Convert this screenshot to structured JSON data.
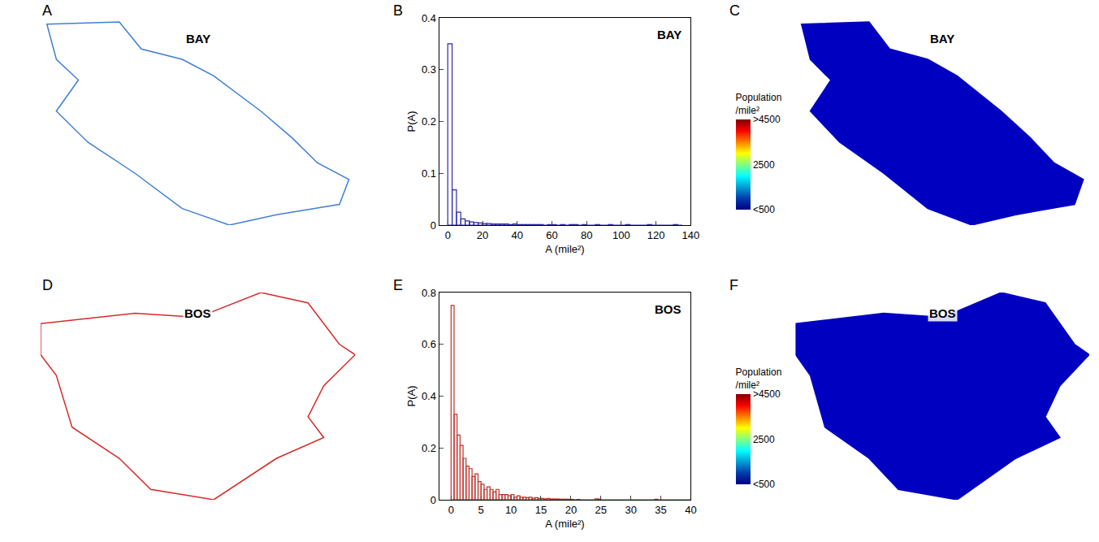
{
  "chart_data": [
    {
      "type": "map",
      "panel": "A",
      "title": "BAY",
      "color": "#3f7fd6"
    },
    {
      "type": "histogram",
      "panel": "B",
      "title": "BAY",
      "color": "#2a2ab0",
      "x_label": "A (mile²)",
      "y_label": "P(A)",
      "bins": [
        0,
        2.5,
        5,
        7.5,
        10,
        12.5,
        15,
        17.5,
        20,
        22.5,
        25,
        27.5,
        30,
        32.5,
        35,
        37.5,
        40,
        42.5,
        45,
        47.5,
        50,
        52.5,
        55,
        57.5,
        60,
        62.5,
        65,
        67.5,
        70,
        72.5,
        75,
        77.5,
        80,
        82.5,
        85,
        87.5,
        90,
        92.5,
        95,
        97.5,
        100,
        102.5,
        105,
        107.5,
        110,
        112.5,
        115,
        117.5,
        120,
        122.5,
        125,
        127.5,
        130,
        132.5,
        135
      ],
      "values": [
        0.35,
        0.068,
        0.025,
        0.012,
        0.008,
        0.006,
        0.005,
        0.004,
        0.003,
        0.003,
        0.002,
        0.002,
        0.002,
        0.002,
        0.001,
        0.002,
        0.001,
        0.001,
        0.001,
        0.001,
        0.001,
        0.001,
        0,
        0.001,
        0.001,
        0,
        0.001,
        0,
        0.001,
        0.001,
        0,
        0.001,
        0,
        0,
        0.001,
        0,
        0,
        0.001,
        0,
        0,
        0,
        0.001,
        0,
        0,
        0,
        0,
        0.001,
        0,
        0,
        0,
        0,
        0,
        0.001,
        0
      ],
      "xlim": [
        -5,
        140
      ],
      "xticks": [
        0,
        20,
        40,
        60,
        80,
        100,
        120,
        140
      ],
      "ylim": [
        0,
        0.4
      ],
      "yticks": [
        0,
        0.1,
        0.2,
        0.3,
        0.4
      ]
    },
    {
      "type": "map",
      "panel": "C",
      "title": "BAY",
      "colorbar_title": "Population /mile²",
      "colorbar_range": [
        500,
        4500
      ],
      "colorbar_ticks": [
        {
          "value": 500,
          "label": "<500"
        },
        2500,
        {
          "value": 4500,
          "label": ">4500"
        }
      ]
    },
    {
      "type": "map",
      "panel": "D",
      "title": "BOS",
      "color": "#d62a2a"
    },
    {
      "type": "histogram",
      "panel": "E",
      "title": "BOS",
      "color": "#c0302a",
      "x_label": "A (mile²)",
      "y_label": "P(A)",
      "bins": [
        0,
        0.5,
        1,
        1.5,
        2,
        2.5,
        3,
        3.5,
        4,
        4.5,
        5,
        5.5,
        6,
        6.5,
        7,
        7.5,
        8,
        8.5,
        9,
        9.5,
        10,
        10.5,
        11,
        11.5,
        12,
        12.5,
        13,
        13.5,
        14,
        14.5,
        15,
        15.5,
        16,
        16.5,
        17,
        17.5,
        18,
        18.5,
        19,
        19.5,
        20,
        20.5,
        21,
        21.5,
        22,
        22.5,
        23,
        23.5,
        24,
        24.5,
        25,
        25.5,
        26,
        26.5,
        27,
        27.5,
        28,
        28.5,
        29,
        29.5,
        30,
        30.5,
        31,
        31.5,
        32,
        32.5,
        33,
        33.5,
        34,
        34.5,
        35,
        35.5,
        36,
        36.5,
        37,
        37.5,
        38,
        38.5,
        39,
        39.5,
        40
      ],
      "values": [
        0.75,
        0.33,
        0.25,
        0.21,
        0.16,
        0.13,
        0.12,
        0.09,
        0.1,
        0.07,
        0.06,
        0.04,
        0.05,
        0.04,
        0.03,
        0.04,
        0.02,
        0.02,
        0.02,
        0.015,
        0.02,
        0.01,
        0.015,
        0.01,
        0.01,
        0.008,
        0.01,
        0.006,
        0.008,
        0.005,
        0.005,
        0.004,
        0.005,
        0.003,
        0.003,
        0.003,
        0.002,
        0.002,
        0.002,
        0.002,
        0.001,
        0,
        0.001,
        0,
        0,
        0,
        0,
        0,
        0.004,
        0.003,
        0,
        0,
        0,
        0,
        0,
        0,
        0,
        0,
        0,
        0,
        0,
        0,
        0,
        0,
        0,
        0,
        0,
        0,
        0.002,
        0,
        0,
        0,
        0,
        0,
        0,
        0,
        0,
        0,
        0,
        0
      ],
      "xlim": [
        -2,
        40
      ],
      "xticks": [
        0,
        5,
        10,
        15,
        20,
        25,
        30,
        35,
        40
      ],
      "ylim": [
        0,
        0.8
      ],
      "yticks": [
        0,
        0.2,
        0.4,
        0.6,
        0.8
      ]
    },
    {
      "type": "map",
      "panel": "F",
      "title": "BOS",
      "colorbar_title": "Population /mile²",
      "colorbar_range": [
        500,
        4500
      ],
      "colorbar_ticks": [
        {
          "value": 500,
          "label": "<500"
        },
        2500,
        {
          "value": 4500,
          "label": ">4500"
        }
      ]
    }
  ]
}
